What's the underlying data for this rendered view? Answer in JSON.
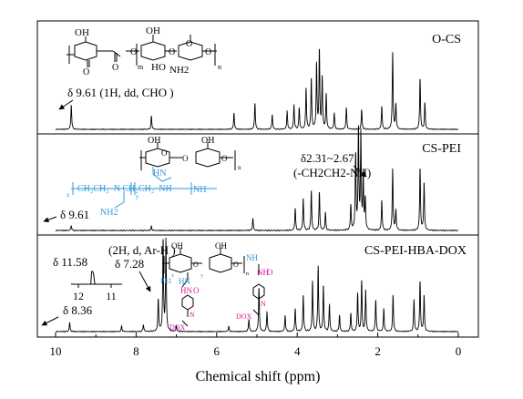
{
  "chart_data": {
    "type": "line",
    "title": "",
    "xlabel": "Chemical shift (ppm)",
    "ylabel": "",
    "xlim": [
      10,
      0
    ],
    "x_reversed": true,
    "x_ticks": [
      10,
      8,
      6,
      4,
      2,
      0
    ],
    "grid": false,
    "panels": [
      {
        "name": "O-CS",
        "structure": "oxidized chitosan",
        "structure_labels": [
          "OH",
          "OH",
          "O",
          "O",
          "O",
          "O",
          "O",
          "O",
          "HO",
          "NH2",
          "m",
          "n"
        ],
        "annotations": [
          {
            "text": "δ 9.61 (1H, dd, CHO )",
            "x": 9.61
          }
        ],
        "peaks": [
          {
            "x": 9.61,
            "h": 0.3
          },
          {
            "x": 7.62,
            "h": 0.16
          },
          {
            "x": 5.57,
            "h": 0.2
          },
          {
            "x": 5.05,
            "h": 0.32
          },
          {
            "x": 4.62,
            "h": 0.18
          },
          {
            "x": 4.25,
            "h": 0.22
          },
          {
            "x": 4.08,
            "h": 0.3
          },
          {
            "x": 3.95,
            "h": 0.26
          },
          {
            "x": 3.78,
            "h": 0.5
          },
          {
            "x": 3.65,
            "h": 0.62
          },
          {
            "x": 3.52,
            "h": 0.78
          },
          {
            "x": 3.45,
            "h": 0.95
          },
          {
            "x": 3.38,
            "h": 0.62
          },
          {
            "x": 3.28,
            "h": 0.42
          },
          {
            "x": 3.08,
            "h": 0.2
          },
          {
            "x": 2.78,
            "h": 0.26
          },
          {
            "x": 2.4,
            "h": 0.24
          },
          {
            "x": 1.9,
            "h": 0.28
          },
          {
            "x": 1.63,
            "h": 0.95
          },
          {
            "x": 1.55,
            "h": 0.3
          },
          {
            "x": 0.95,
            "h": 0.62
          },
          {
            "x": 0.83,
            "h": 0.32
          }
        ]
      },
      {
        "name": "CS-PEI",
        "structure": "chitosan-polyethylenimine",
        "structure_labels": [
          "OH",
          "OH",
          "O",
          "O",
          "O",
          "HN",
          "NH",
          "NH2",
          "x",
          "y",
          "n"
        ],
        "annotations": [
          {
            "text": "δ 9.61",
            "x": 9.61
          },
          {
            "text": "δ2.31~2.67",
            "x": 2.45
          },
          {
            "text": "(-CH2CH2-NH)",
            "x": 2.45
          }
        ],
        "peaks": [
          {
            "x": 9.61,
            "h": 0.05
          },
          {
            "x": 7.62,
            "h": 0.04
          },
          {
            "x": 5.1,
            "h": 0.12
          },
          {
            "x": 4.05,
            "h": 0.22
          },
          {
            "x": 3.85,
            "h": 0.32
          },
          {
            "x": 3.65,
            "h": 0.4
          },
          {
            "x": 3.45,
            "h": 0.38
          },
          {
            "x": 3.3,
            "h": 0.18
          },
          {
            "x": 2.67,
            "h": 0.25
          },
          {
            "x": 2.55,
            "h": 0.75
          },
          {
            "x": 2.48,
            "h": 1.0
          },
          {
            "x": 2.42,
            "h": 0.95
          },
          {
            "x": 2.36,
            "h": 0.55
          },
          {
            "x": 2.31,
            "h": 0.3
          },
          {
            "x": 1.9,
            "h": 0.3
          },
          {
            "x": 1.63,
            "h": 0.62
          },
          {
            "x": 1.55,
            "h": 0.2
          },
          {
            "x": 0.95,
            "h": 0.62
          },
          {
            "x": 0.85,
            "h": 0.48
          }
        ]
      },
      {
        "name": "CS-PEI-HBA-DOX",
        "structure": "CS-PEI conjugated with HBA-DOX",
        "structure_labels": [
          "OH",
          "OH",
          "O",
          "O",
          "HN",
          "PEI",
          "NH",
          "HN",
          "O",
          "O",
          "NH",
          "N",
          "DOX",
          "DOX",
          "N",
          "x",
          "y",
          "n"
        ],
        "annotations": [
          {
            "text": "δ 11.58",
            "x": 11.58
          },
          {
            "text": "(2H, d, Ar-H )",
            "x": 7.28
          },
          {
            "text": "δ 7.28",
            "x": 7.28
          },
          {
            "text": "δ 8.36",
            "x": 8.36
          }
        ],
        "inset": {
          "x_ticks": [
            12,
            11
          ],
          "peak": 11.58
        },
        "peaks": [
          {
            "x": 9.65,
            "h": 0.1
          },
          {
            "x": 8.36,
            "h": 0.06
          },
          {
            "x": 7.82,
            "h": 0.08
          },
          {
            "x": 7.45,
            "h": 0.35
          },
          {
            "x": 7.33,
            "h": 1.0
          },
          {
            "x": 7.26,
            "h": 1.0
          },
          {
            "x": 7.0,
            "h": 0.06
          },
          {
            "x": 5.7,
            "h": 0.06
          },
          {
            "x": 5.2,
            "h": 0.14
          },
          {
            "x": 4.95,
            "h": 0.48
          },
          {
            "x": 4.75,
            "h": 0.22
          },
          {
            "x": 4.3,
            "h": 0.18
          },
          {
            "x": 4.05,
            "h": 0.25
          },
          {
            "x": 3.85,
            "h": 0.4
          },
          {
            "x": 3.62,
            "h": 0.55
          },
          {
            "x": 3.48,
            "h": 0.72
          },
          {
            "x": 3.35,
            "h": 0.5
          },
          {
            "x": 3.2,
            "h": 0.3
          },
          {
            "x": 2.95,
            "h": 0.18
          },
          {
            "x": 2.67,
            "h": 0.2
          },
          {
            "x": 2.5,
            "h": 0.42
          },
          {
            "x": 2.4,
            "h": 0.55
          },
          {
            "x": 2.3,
            "h": 0.45
          },
          {
            "x": 2.05,
            "h": 0.35
          },
          {
            "x": 1.85,
            "h": 0.25
          },
          {
            "x": 1.62,
            "h": 0.4
          },
          {
            "x": 1.1,
            "h": 0.35
          },
          {
            "x": 0.95,
            "h": 0.55
          },
          {
            "x": 0.85,
            "h": 0.4
          }
        ]
      }
    ]
  }
}
